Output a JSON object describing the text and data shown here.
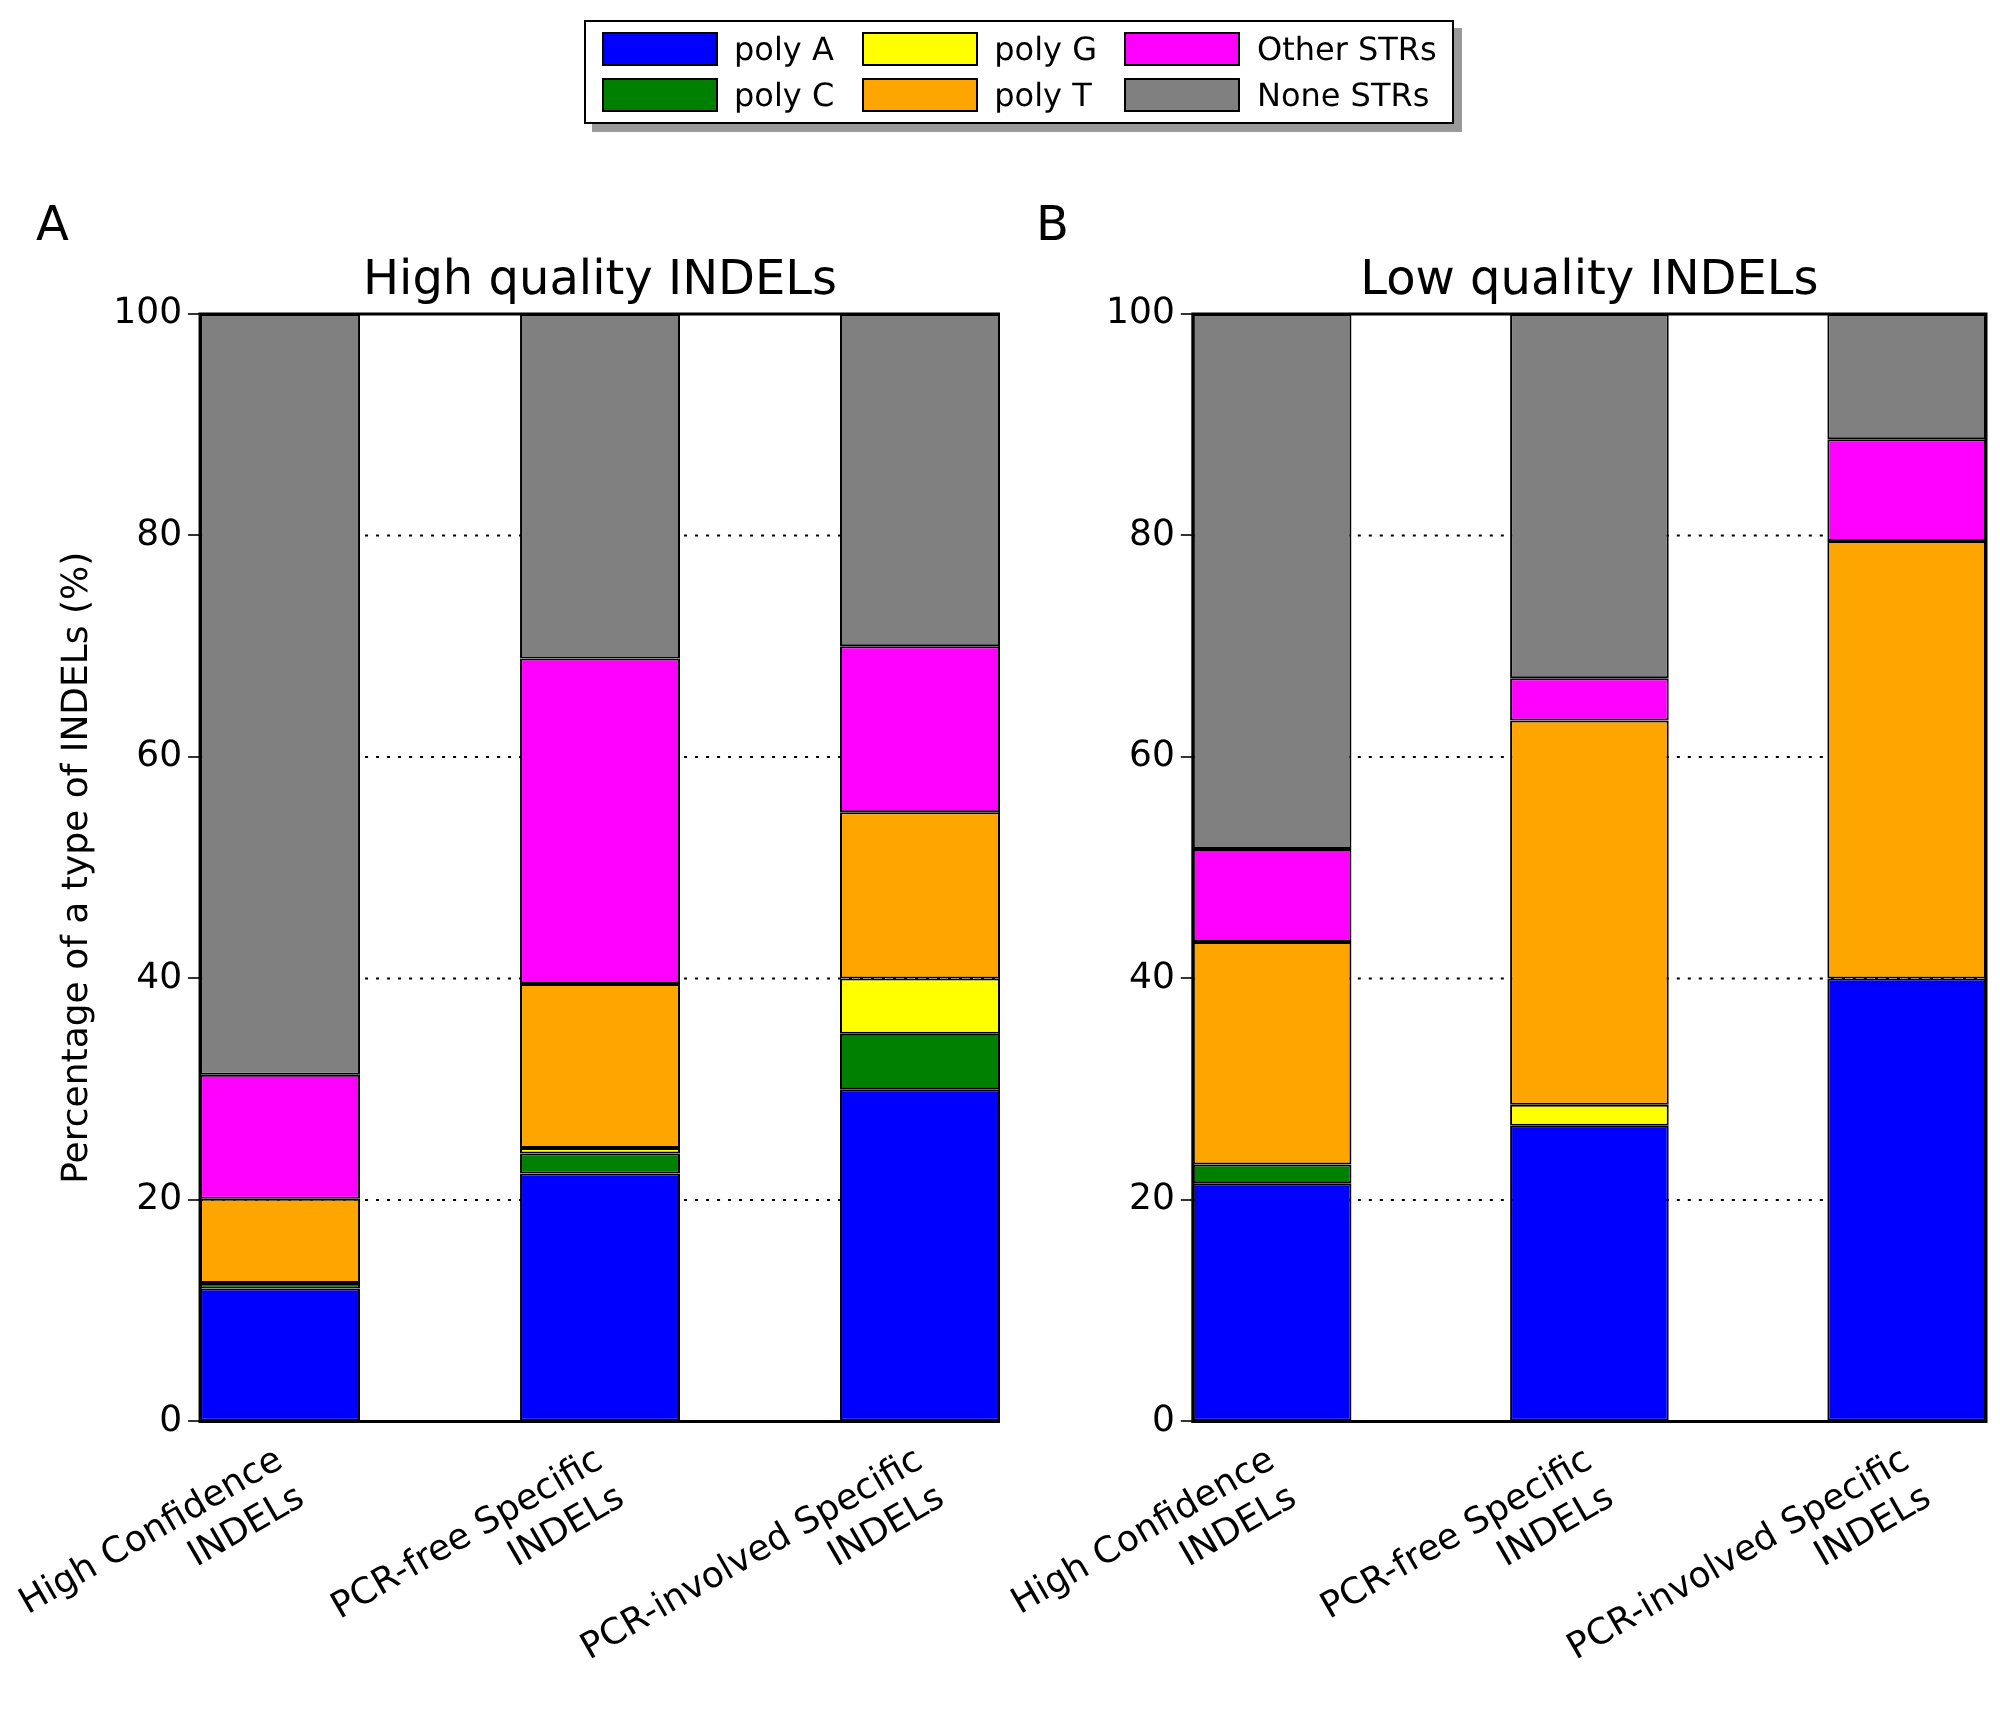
{
  "chart_data": [
    {
      "type": "bar",
      "title": "High quality INDELs",
      "ylabel": "Percentage of a type of INDELs (%)",
      "annotations": [
        "A"
      ],
      "categories": [
        "High Confidence INDELs",
        "PCR-free Specific INDELs",
        "PCR-involved Specific INDELs"
      ],
      "stacked": true,
      "legend": "top",
      "grid": "y",
      "ylim": [
        0,
        100
      ],
      "yticks": [
        0,
        20,
        40,
        60,
        80,
        100
      ],
      "series": [
        {
          "name": "poly A",
          "color": "#0000ff",
          "values": [
            12,
            22.4,
            30
          ]
        },
        {
          "name": "poly C",
          "color": "#008000",
          "values": [
            0.5,
            1.8,
            5
          ]
        },
        {
          "name": "poly G",
          "color": "#ffff00",
          "values": [
            0,
            0.5,
            5
          ]
        },
        {
          "name": "poly T",
          "color": "#ffa500",
          "values": [
            7.6,
            14.8,
            15
          ]
        },
        {
          "name": "Other STRs",
          "color": "#ff00ff",
          "values": [
            11.2,
            29.4,
            15
          ]
        },
        {
          "name": "None STRs",
          "color": "#808080",
          "values": [
            68.7,
            31.1,
            30
          ]
        }
      ]
    },
    {
      "type": "bar",
      "title": "Low quality INDELs",
      "annotations": [
        "B"
      ],
      "categories": [
        "High Confidence INDELs",
        "PCR-free Specific INDELs",
        "PCR-involved Specific INDELs"
      ],
      "stacked": true,
      "grid": "y",
      "ylim": [
        0,
        100
      ],
      "yticks": [
        0,
        20,
        40,
        60,
        80,
        100
      ],
      "series": [
        {
          "color": "#0000ff",
          "values": [
            21.5,
            26.7,
            40
          ]
        },
        {
          "color": "#008000",
          "values": [
            1.7,
            0,
            0
          ]
        },
        {
          "color": "#ffff00",
          "values": [
            0,
            1.9,
            0
          ]
        },
        {
          "color": "#ffa500",
          "values": [
            20.1,
            34.7,
            39.5
          ]
        },
        {
          "color": "#ff00ff",
          "values": [
            8.4,
            3.8,
            9.2
          ]
        },
        {
          "color": "#808080",
          "values": [
            48.3,
            32.9,
            11.3
          ]
        }
      ]
    }
  ]
}
